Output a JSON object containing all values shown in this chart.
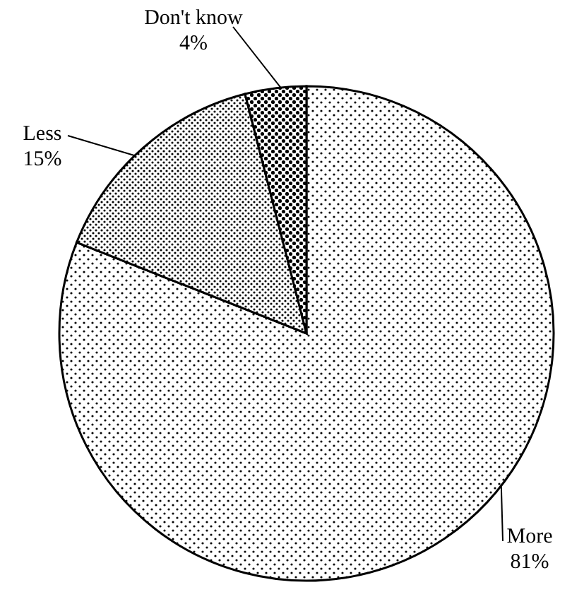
{
  "chart_data": {
    "type": "pie",
    "categories": [
      "More",
      "Less",
      "Don't know"
    ],
    "values": [
      81,
      15,
      4
    ],
    "value_labels": [
      "81%",
      "15%",
      "4%"
    ]
  }
}
